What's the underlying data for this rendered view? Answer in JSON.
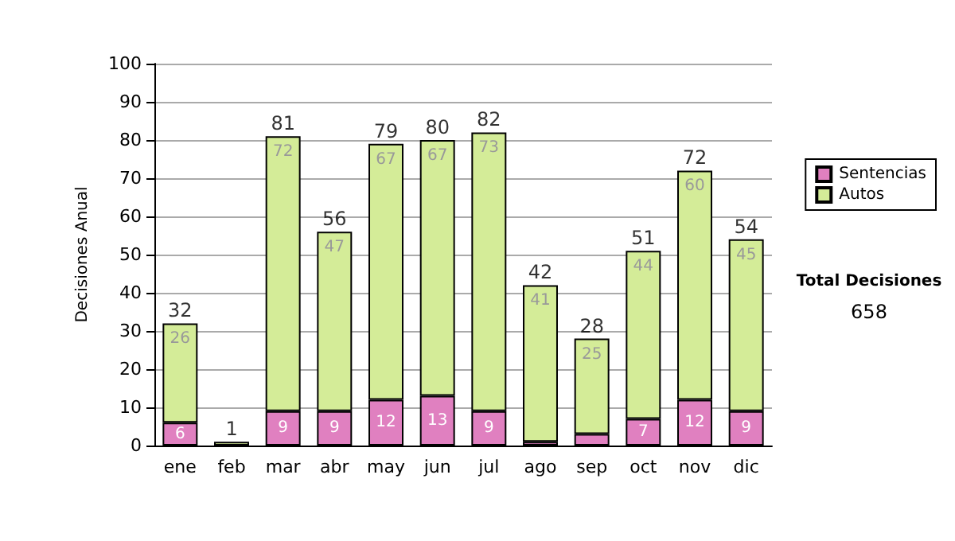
{
  "chart_data": {
    "type": "bar",
    "stacked": true,
    "ylabel": "Decisiones Anual",
    "categories": [
      "ene",
      "feb",
      "mar",
      "abr",
      "may",
      "jun",
      "jul",
      "ago",
      "sep",
      "oct",
      "nov",
      "dic"
    ],
    "series": [
      {
        "name": "Sentencias",
        "color": "#e080c0",
        "values": [
          6,
          0,
          9,
          9,
          12,
          13,
          9,
          1,
          3,
          7,
          12,
          9
        ],
        "value_labels": [
          "6",
          null,
          "9",
          "9",
          "12",
          "13",
          "9",
          null,
          null,
          "7",
          "12",
          "9"
        ]
      },
      {
        "name": "Autos",
        "color": "#d4ec98",
        "values": [
          26,
          1,
          72,
          47,
          67,
          67,
          73,
          41,
          25,
          44,
          60,
          45
        ],
        "value_labels": [
          "26",
          null,
          "72",
          "47",
          "67",
          "67",
          "73",
          "41",
          "25",
          "44",
          "60",
          "45"
        ]
      }
    ],
    "totals": [
      "32",
      "1",
      "81",
      "56",
      "79",
      "80",
      "82",
      "42",
      "28",
      "51",
      "72",
      "54"
    ],
    "ylim": [
      0,
      100
    ],
    "yticks": [
      0,
      10,
      20,
      30,
      40,
      50,
      60,
      70,
      80,
      90,
      100
    ],
    "grid": "y",
    "legend": "right",
    "annotations": [
      "Total Decisiones",
      "658"
    ]
  }
}
